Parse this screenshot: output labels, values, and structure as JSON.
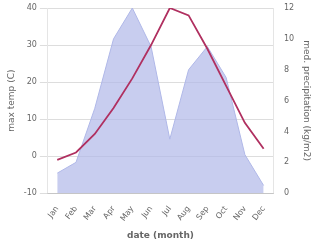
{
  "chart_data": {
    "type": "line",
    "categories": [
      "Jan",
      "Feb",
      "Mar",
      "Apr",
      "May",
      "Jun",
      "Jul",
      "Aug",
      "Sep",
      "Oct",
      "Nov",
      "Dec"
    ],
    "series": [
      {
        "color": "#b03060",
        "values": [
          -1,
          1,
          6,
          13,
          21,
          30,
          40,
          38,
          29,
          19,
          9,
          2
        ]
      },
      {
        "type": "area",
        "axis": "y2",
        "color": "#b0b8e8",
        "values": [
          1.3,
          2.0,
          5.5,
          10.0,
          12.0,
          9.5,
          3.5,
          8.0,
          9.5,
          7.5,
          2.5,
          0.5
        ]
      }
    ],
    "xlabel": "date (month)",
    "ylabel": "max temp (C)",
    "y2label": "med. precipitation (kg/m2)",
    "ylim": [
      -10,
      40
    ],
    "yticks": [
      -10,
      0,
      10,
      20,
      30,
      40
    ],
    "y2lim": [
      0,
      12
    ],
    "y2ticks": [
      0,
      2,
      4,
      6,
      8,
      10,
      12
    ],
    "grid": true
  }
}
